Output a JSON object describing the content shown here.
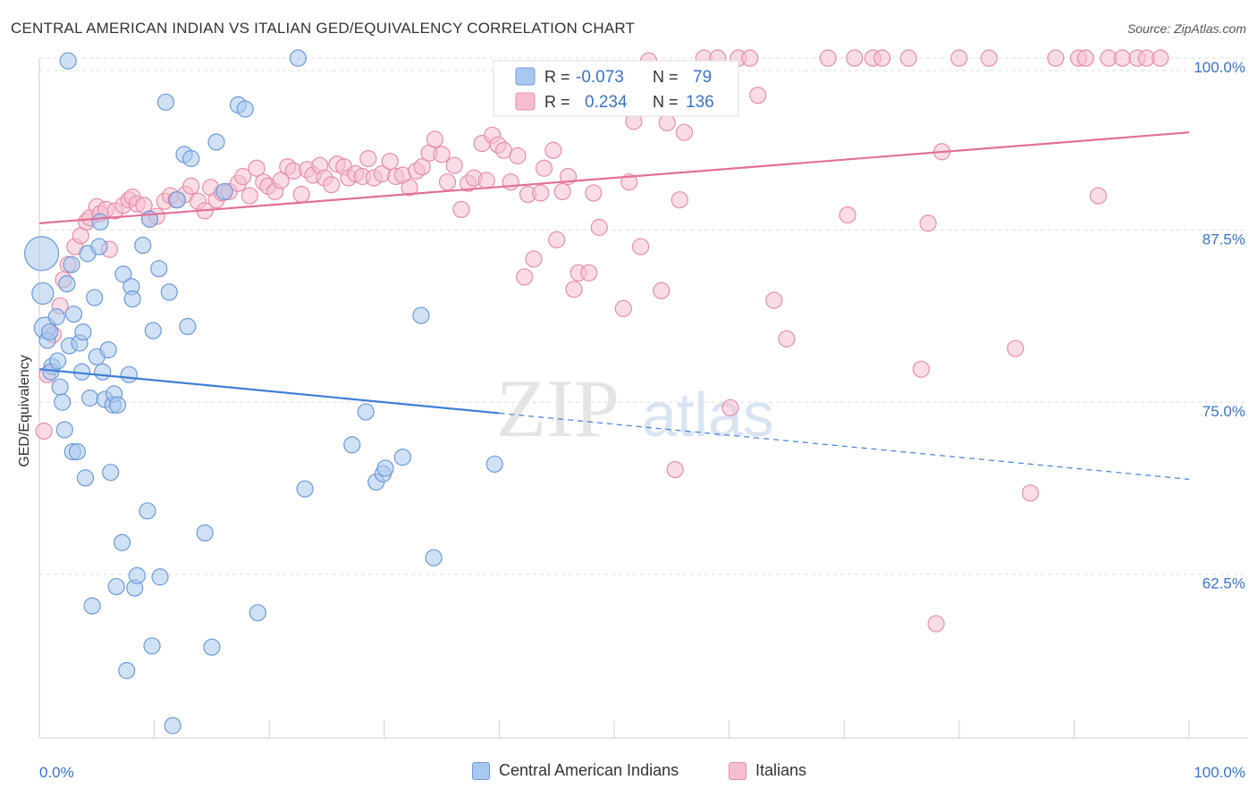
{
  "title": "CENTRAL AMERICAN INDIAN VS ITALIAN GED/EQUIVALENCY CORRELATION CHART",
  "source": "Source: ZipAtlas.com",
  "watermark": {
    "zip": "ZIP",
    "atlas": "atlas"
  },
  "colors": {
    "blue_fill": "#a9c8ef",
    "blue_stroke": "#6c9ad8",
    "blue_line": "#3f7fd6",
    "pink_fill": "#f6bfd0",
    "pink_stroke": "#e58eab",
    "pink_line": "#e07099",
    "value_text": "#3b73c7",
    "grid": "#dddddd"
  },
  "legend_top": {
    "rows": [
      {
        "r_label": "R =",
        "r_value": "-0.073",
        "n_label": "N =",
        "n_value": "79"
      },
      {
        "r_label": "R =",
        "r_value": "0.234",
        "n_label": "N =",
        "n_value": "136"
      }
    ]
  },
  "legend_bottom": [
    "Central American Indians",
    "Italians"
  ],
  "chart_data": {
    "type": "scatter",
    "xlabel": "",
    "ylabel": "GED/Equivalency",
    "xlim": [
      0,
      100
    ],
    "ylim": [
      50.6,
      101.3
    ],
    "x_tick_labels": [
      "0.0%",
      "100.0%"
    ],
    "y_ticks": [
      62.5,
      75.0,
      87.5,
      100.0
    ],
    "y_tick_labels": [
      "62.5%",
      "75.0%",
      "87.5%",
      "100.0%"
    ],
    "grid": true,
    "series": [
      {
        "name": "Central American Indians",
        "trend": {
          "x0": 0,
          "y0": 77.4,
          "x1": 100,
          "y1": 69.4,
          "solid_until_x": 40
        },
        "points": [
          [
            0.2,
            85.8,
            "L"
          ],
          [
            0.3,
            82.9,
            "M"
          ],
          [
            0.5,
            80.4,
            "M"
          ],
          [
            0.7,
            79.5
          ],
          [
            0.9,
            80.1
          ],
          [
            1.1,
            77.6
          ],
          [
            1.0,
            77.2
          ],
          [
            1.5,
            81.2
          ],
          [
            1.6,
            78.0
          ],
          [
            1.8,
            76.1
          ],
          [
            2.0,
            75.0
          ],
          [
            2.2,
            73.0
          ],
          [
            2.4,
            83.6
          ],
          [
            2.6,
            79.1
          ],
          [
            2.8,
            85.0
          ],
          [
            3.0,
            81.4
          ],
          [
            2.9,
            71.4
          ],
          [
            3.3,
            71.4
          ],
          [
            3.5,
            79.3
          ],
          [
            3.7,
            77.2
          ],
          [
            3.8,
            80.1
          ],
          [
            4.0,
            69.5
          ],
          [
            4.2,
            85.8
          ],
          [
            4.4,
            75.3
          ],
          [
            4.6,
            60.2
          ],
          [
            4.8,
            82.6
          ],
          [
            5.0,
            78.3
          ],
          [
            5.2,
            86.3
          ],
          [
            5.3,
            88.1
          ],
          [
            5.5,
            77.2
          ],
          [
            5.7,
            75.2
          ],
          [
            6.0,
            78.8
          ],
          [
            6.2,
            69.9
          ],
          [
            6.4,
            74.8
          ],
          [
            6.5,
            75.6
          ],
          [
            6.7,
            61.6
          ],
          [
            6.8,
            74.8
          ],
          [
            7.3,
            84.3
          ],
          [
            7.2,
            64.8
          ],
          [
            7.6,
            55.5
          ],
          [
            7.8,
            77.0
          ],
          [
            8.0,
            83.4
          ],
          [
            8.1,
            82.5
          ],
          [
            8.3,
            61.5
          ],
          [
            8.5,
            62.4
          ],
          [
            9.0,
            86.4
          ],
          [
            9.4,
            67.1
          ],
          [
            9.6,
            88.3
          ],
          [
            9.9,
            80.2
          ],
          [
            9.8,
            57.3
          ],
          [
            10.4,
            84.7
          ],
          [
            10.5,
            62.3
          ],
          [
            11.0,
            96.8
          ],
          [
            11.3,
            83.0
          ],
          [
            11.6,
            51.5
          ],
          [
            12.0,
            89.7
          ],
          [
            12.6,
            93.0
          ],
          [
            12.9,
            80.5
          ],
          [
            13.2,
            92.7
          ],
          [
            14.4,
            65.5
          ],
          [
            15.0,
            57.2
          ],
          [
            15.4,
            93.9
          ],
          [
            16.1,
            90.3
          ],
          [
            17.3,
            96.6
          ],
          [
            17.9,
            96.3
          ],
          [
            19.0,
            59.7
          ],
          [
            22.5,
            100.0
          ],
          [
            23.1,
            68.7
          ],
          [
            27.2,
            71.9
          ],
          [
            28.4,
            74.3
          ],
          [
            29.3,
            69.2
          ],
          [
            29.9,
            69.8
          ],
          [
            30.1,
            70.2
          ],
          [
            31.6,
            71.0
          ],
          [
            33.2,
            81.3
          ],
          [
            34.3,
            63.7
          ],
          [
            39.6,
            70.5
          ],
          [
            2.5,
            99.8
          ]
        ]
      },
      {
        "name": "Italians",
        "trend": {
          "x0": 0,
          "y0": 88.0,
          "x1": 100,
          "y1": 94.6
        },
        "points": [
          [
            0.4,
            72.9
          ],
          [
            0.7,
            77.0
          ],
          [
            1.2,
            79.9
          ],
          [
            1.8,
            82.0
          ],
          [
            2.1,
            83.9
          ],
          [
            2.5,
            85.0
          ],
          [
            3.1,
            86.3
          ],
          [
            3.6,
            87.1
          ],
          [
            4.1,
            88.1
          ],
          [
            4.4,
            88.4
          ],
          [
            5.0,
            89.2
          ],
          [
            5.3,
            88.7
          ],
          [
            5.8,
            89.0
          ],
          [
            6.1,
            86.1
          ],
          [
            6.6,
            88.9
          ],
          [
            7.3,
            89.3
          ],
          [
            7.8,
            89.7
          ],
          [
            8.1,
            89.9
          ],
          [
            8.5,
            89.4
          ],
          [
            9.1,
            89.3
          ],
          [
            9.6,
            88.3
          ],
          [
            10.2,
            88.5
          ],
          [
            10.9,
            89.6
          ],
          [
            11.4,
            90.0
          ],
          [
            11.9,
            89.7
          ],
          [
            12.7,
            90.1
          ],
          [
            13.2,
            90.7
          ],
          [
            13.8,
            89.6
          ],
          [
            14.4,
            88.9
          ],
          [
            14.9,
            90.6
          ],
          [
            15.4,
            89.7
          ],
          [
            15.9,
            90.2
          ],
          [
            16.5,
            90.3
          ],
          [
            17.3,
            90.9
          ],
          [
            17.7,
            91.4
          ],
          [
            18.3,
            90.0
          ],
          [
            18.9,
            92.0
          ],
          [
            19.5,
            91.0
          ],
          [
            19.9,
            90.7
          ],
          [
            20.5,
            90.3
          ],
          [
            21.0,
            91.1
          ],
          [
            21.6,
            92.1
          ],
          [
            22.1,
            91.8
          ],
          [
            22.8,
            90.1
          ],
          [
            23.3,
            91.9
          ],
          [
            23.8,
            91.5
          ],
          [
            24.4,
            92.2
          ],
          [
            24.8,
            91.3
          ],
          [
            25.4,
            90.8
          ],
          [
            25.9,
            92.3
          ],
          [
            26.5,
            92.1
          ],
          [
            26.9,
            91.3
          ],
          [
            27.5,
            91.6
          ],
          [
            28.1,
            91.4
          ],
          [
            28.6,
            92.7
          ],
          [
            29.1,
            91.3
          ],
          [
            29.8,
            91.6
          ],
          [
            30.5,
            92.5
          ],
          [
            31.0,
            91.4
          ],
          [
            31.6,
            91.5
          ],
          [
            32.2,
            90.6
          ],
          [
            32.8,
            91.8
          ],
          [
            33.3,
            92.1
          ],
          [
            33.9,
            93.1
          ],
          [
            34.4,
            94.1
          ],
          [
            35.0,
            93.0
          ],
          [
            35.5,
            91.0
          ],
          [
            36.1,
            92.2
          ],
          [
            36.7,
            89.0
          ],
          [
            37.3,
            90.9
          ],
          [
            37.8,
            91.3
          ],
          [
            38.5,
            93.8
          ],
          [
            38.9,
            91.1
          ],
          [
            39.4,
            94.4
          ],
          [
            39.9,
            93.7
          ],
          [
            40.4,
            93.3
          ],
          [
            41.0,
            91.0
          ],
          [
            41.6,
            92.9
          ],
          [
            42.2,
            84.1
          ],
          [
            42.5,
            90.1
          ],
          [
            43.0,
            85.4
          ],
          [
            43.6,
            90.2
          ],
          [
            43.9,
            92.0
          ],
          [
            44.7,
            93.3
          ],
          [
            45.0,
            86.8
          ],
          [
            45.5,
            90.3
          ],
          [
            46.0,
            91.4
          ],
          [
            46.5,
            83.2
          ],
          [
            46.9,
            84.4
          ],
          [
            47.8,
            84.4
          ],
          [
            48.2,
            90.2
          ],
          [
            48.7,
            87.7
          ],
          [
            49.7,
            96.8
          ],
          [
            50.8,
            81.8
          ],
          [
            51.3,
            91.0
          ],
          [
            51.7,
            95.4
          ],
          [
            52.3,
            86.3
          ],
          [
            53.0,
            99.8
          ],
          [
            54.1,
            83.1
          ],
          [
            54.6,
            95.3
          ],
          [
            55.3,
            70.1
          ],
          [
            55.7,
            89.7
          ],
          [
            56.1,
            94.6
          ],
          [
            56.8,
            96.4
          ],
          [
            57.8,
            100.0
          ],
          [
            59.0,
            100.0
          ],
          [
            60.1,
            74.6
          ],
          [
            60.8,
            100.0
          ],
          [
            61.8,
            100.0
          ],
          [
            62.5,
            97.3
          ],
          [
            63.9,
            82.4
          ],
          [
            65.0,
            79.6
          ],
          [
            68.6,
            100.0
          ],
          [
            70.3,
            88.6
          ],
          [
            70.9,
            100.0
          ],
          [
            72.5,
            100.0
          ],
          [
            73.3,
            100.0
          ],
          [
            75.6,
            100.0
          ],
          [
            76.7,
            77.4
          ],
          [
            78.0,
            58.9
          ],
          [
            77.3,
            88.0
          ],
          [
            78.5,
            93.2
          ],
          [
            80.0,
            100.0
          ],
          [
            82.6,
            100.0
          ],
          [
            84.9,
            78.9
          ],
          [
            86.2,
            68.4
          ],
          [
            88.4,
            100.0
          ],
          [
            90.4,
            100.0
          ],
          [
            91.0,
            100.0
          ],
          [
            92.1,
            90.0
          ],
          [
            93.0,
            100.0
          ],
          [
            94.2,
            100.0
          ],
          [
            95.5,
            100.0
          ],
          [
            96.3,
            100.0
          ],
          [
            97.5,
            100.0
          ]
        ]
      }
    ]
  }
}
